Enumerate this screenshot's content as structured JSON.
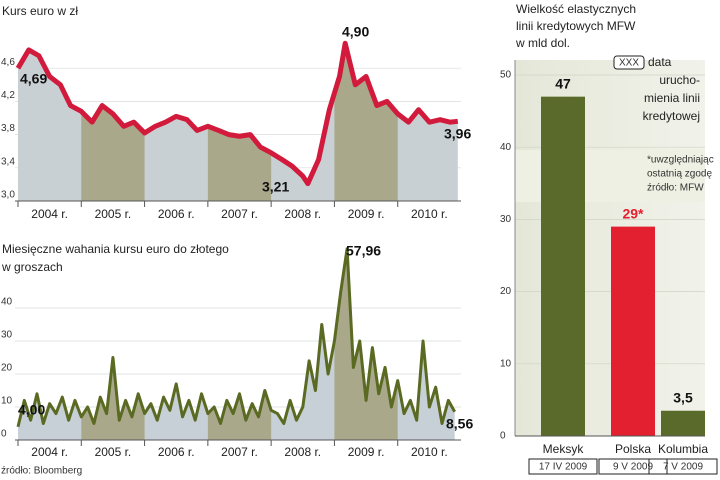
{
  "chart_data": [
    {
      "type": "line",
      "title": "Kurs euro w zł",
      "x": [
        2004.0,
        2004.17,
        2004.33,
        2004.5,
        2004.67,
        2004.83,
        2005.0,
        2005.17,
        2005.33,
        2005.5,
        2005.67,
        2005.83,
        2006.0,
        2006.17,
        2006.33,
        2006.5,
        2006.67,
        2006.83,
        2007.0,
        2007.17,
        2007.33,
        2007.5,
        2007.67,
        2007.83,
        2008.0,
        2008.17,
        2008.33,
        2008.5,
        2008.58,
        2008.75,
        2008.92,
        2009.08,
        2009.17,
        2009.33,
        2009.5,
        2009.67,
        2009.83,
        2010.0,
        2010.17,
        2010.33,
        2010.5,
        2010.67,
        2010.83,
        2010.95
      ],
      "series": [
        {
          "color": "#d11a3c",
          "values": [
            4.6,
            4.82,
            4.75,
            4.5,
            4.4,
            4.15,
            4.08,
            3.95,
            4.15,
            4.05,
            3.9,
            3.95,
            3.82,
            3.9,
            3.95,
            4.02,
            3.98,
            3.85,
            3.9,
            3.85,
            3.8,
            3.78,
            3.8,
            3.65,
            3.58,
            3.5,
            3.42,
            3.3,
            3.21,
            3.5,
            4.1,
            4.5,
            4.9,
            4.4,
            4.5,
            4.15,
            4.2,
            4.05,
            3.95,
            4.1,
            3.95,
            3.98,
            3.95,
            3.96
          ]
        }
      ],
      "fill_color": "#c9d0d4",
      "band_color": "#aaa88a",
      "xlim": [
        2004,
        2011
      ],
      "ylim": [
        3.0,
        5.0
      ],
      "xticks": [
        {
          "value": 2004.5,
          "label": "2004 r."
        },
        {
          "value": 2005.5,
          "label": "2005 r."
        },
        {
          "value": 2006.5,
          "label": "2006 r."
        },
        {
          "value": 2007.5,
          "label": "2007 r."
        },
        {
          "value": 2008.5,
          "label": "2008 r."
        },
        {
          "value": 2009.5,
          "label": "2009 r."
        },
        {
          "value": 2010.5,
          "label": "2010 r."
        }
      ],
      "yticks": [
        {
          "value": 3.0,
          "label": "3,0"
        },
        {
          "value": 3.4,
          "label": "3,4"
        },
        {
          "value": 3.8,
          "label": "3,8"
        },
        {
          "value": 4.2,
          "label": "4,2"
        },
        {
          "value": 4.6,
          "label": "4,6"
        }
      ],
      "annotations": [
        "4,69",
        "4,90",
        "3,21",
        "3,96"
      ]
    },
    {
      "type": "line",
      "title_lines": [
        "Miesięczne wahania kursu euro do złotego",
        "w groszach"
      ],
      "x": [
        2004.0,
        2004.1,
        2004.2,
        2004.3,
        2004.4,
        2004.5,
        2004.6,
        2004.7,
        2004.8,
        2004.9,
        2005.0,
        2005.1,
        2005.2,
        2005.3,
        2005.4,
        2005.5,
        2005.6,
        2005.7,
        2005.8,
        2005.9,
        2006.0,
        2006.1,
        2006.2,
        2006.3,
        2006.4,
        2006.5,
        2006.6,
        2006.7,
        2006.8,
        2006.9,
        2007.0,
        2007.1,
        2007.2,
        2007.3,
        2007.4,
        2007.5,
        2007.6,
        2007.7,
        2007.8,
        2007.9,
        2008.0,
        2008.1,
        2008.2,
        2008.3,
        2008.4,
        2008.5,
        2008.6,
        2008.7,
        2008.8,
        2008.9,
        2009.0,
        2009.1,
        2009.2,
        2009.3,
        2009.4,
        2009.5,
        2009.6,
        2009.7,
        2009.8,
        2009.9,
        2010.0,
        2010.1,
        2010.2,
        2010.3,
        2010.4,
        2010.5,
        2010.6,
        2010.7,
        2010.8,
        2010.9
      ],
      "series": [
        {
          "color": "#5a6a22",
          "values": [
            4.0,
            12,
            6,
            14,
            5,
            11,
            8,
            13,
            6,
            12,
            7,
            10,
            5,
            13,
            8,
            25,
            6,
            12,
            7,
            14,
            8,
            11,
            6,
            13,
            9,
            17,
            7,
            12,
            6,
            14,
            8,
            10,
            5,
            12,
            8,
            14,
            6,
            11,
            7,
            15,
            9,
            8,
            5,
            12,
            6,
            10,
            24,
            15,
            35,
            20,
            30,
            45,
            57.96,
            22,
            30,
            12,
            28,
            14,
            22,
            10,
            18,
            8,
            12,
            6,
            30,
            10,
            16,
            5,
            12,
            8.56
          ]
        }
      ],
      "fill_color": "#c6d0d6",
      "band_color": "#aaa88a",
      "xlim": [
        2004,
        2011
      ],
      "ylim": [
        0,
        60
      ],
      "xticks": [
        {
          "value": 2004.5,
          "label": "2004 r."
        },
        {
          "value": 2005.5,
          "label": "2005 r."
        },
        {
          "value": 2006.5,
          "label": "2006 r."
        },
        {
          "value": 2007.5,
          "label": "2007 r."
        },
        {
          "value": 2008.5,
          "label": "2008 r."
        },
        {
          "value": 2009.5,
          "label": "2009 r."
        },
        {
          "value": 2010.5,
          "label": "2010 r."
        }
      ],
      "yticks": [
        0,
        10,
        20,
        30,
        40
      ],
      "annotations": [
        "57,96",
        "4,00",
        "8,56"
      ],
      "source": "źródło: Bloomberg"
    },
    {
      "type": "bar",
      "title_lines": [
        "Wielkość elastycznych",
        "linii kredytowych MFW",
        "w mld dol."
      ],
      "categories": [
        "Meksyk",
        "Polska",
        "Kolumbia"
      ],
      "date_labels": [
        "17 IV 2009",
        "9 V 2009",
        "7 V 2009"
      ],
      "values": [
        47,
        29,
        3.5
      ],
      "value_labels": [
        "47",
        "29*",
        "3,5"
      ],
      "colors": [
        "#5a6a2a",
        "#e3202f",
        "#5a6a2a"
      ],
      "ylim": [
        0,
        50
      ],
      "yticks": [
        0,
        10,
        20,
        30,
        40,
        50
      ],
      "legend": {
        "symbol": "XXX",
        "text_lines": [
          "data",
          "urucho-",
          "mienia linii",
          "kredytowej"
        ]
      },
      "note_lines": [
        "*uwzględniając",
        "ostatnią zgodę",
        "źródło: MFW"
      ]
    }
  ]
}
